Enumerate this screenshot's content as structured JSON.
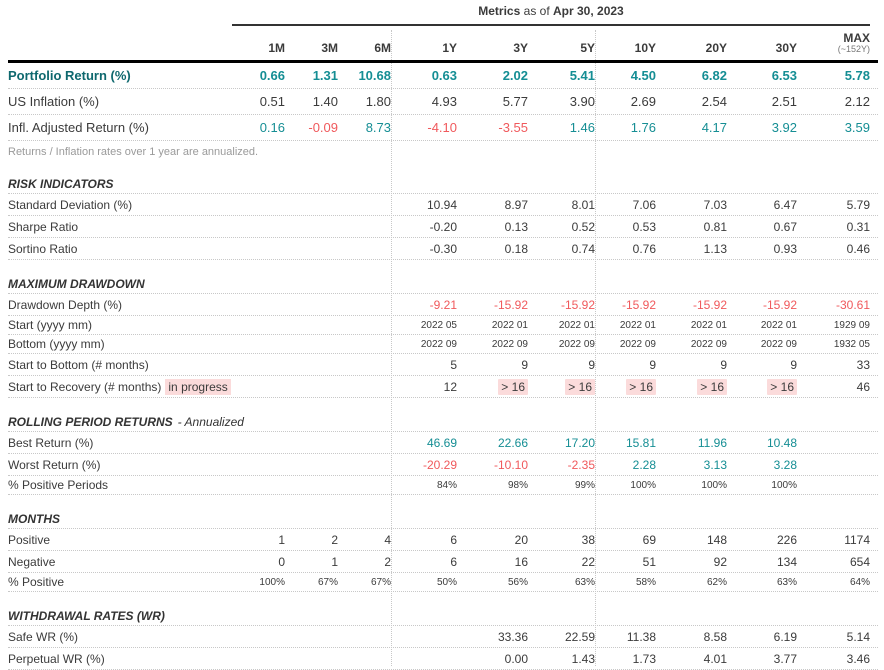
{
  "title": {
    "prefix": "Metrics",
    "middle": "as of",
    "date": "Apr 30, 2023"
  },
  "columns": [
    "1M",
    "3M",
    "6M",
    "1Y",
    "3Y",
    "5Y",
    "10Y",
    "20Y",
    "30Y",
    "MAX"
  ],
  "max_subnote": "(~152Y)",
  "note": "Returns / Inflation rates over 1 year are annualized.",
  "colors": {
    "teal": "#158e94",
    "red": "#f0595c",
    "dark": "#3b3b3b",
    "highlight_bg": "#fbdbdb"
  },
  "chart_data": {
    "type": "table",
    "title": "Metrics as of Apr 30, 2023",
    "categories": [
      "1M",
      "3M",
      "6M",
      "1Y",
      "3Y",
      "5Y",
      "10Y",
      "20Y",
      "30Y",
      "MAX (~152Y)"
    ]
  },
  "sections": [
    {
      "title": "",
      "rows": [
        {
          "label": "Portfolio Return (%)",
          "label_style": "primary",
          "size": "lg",
          "values": [
            "0.66",
            "1.31",
            "10.68",
            "0.63",
            "2.02",
            "5.41",
            "4.50",
            "6.82",
            "6.53",
            "5.78"
          ],
          "colors": [
            "t",
            "t",
            "t",
            "t",
            "t",
            "t",
            "t",
            "t",
            "t",
            "t"
          ]
        },
        {
          "label": "US Inflation (%)",
          "size": "lg",
          "plain": true,
          "values": [
            "0.51",
            "1.40",
            "1.80",
            "4.93",
            "5.77",
            "3.90",
            "2.69",
            "2.54",
            "2.51",
            "2.12"
          ],
          "colors": [
            "",
            "",
            "",
            "",
            "",
            "",
            "",
            "",
            "",
            ""
          ]
        },
        {
          "label": "Infl. Adjusted Return (%)",
          "size": "lg",
          "plain": true,
          "values": [
            "0.16",
            "-0.09",
            "8.73",
            "-4.10",
            "-3.55",
            "1.46",
            "1.76",
            "4.17",
            "3.92",
            "3.59"
          ],
          "colors": [
            "t",
            "r",
            "t",
            "r",
            "r",
            "t",
            "t",
            "t",
            "t",
            "t"
          ]
        }
      ]
    },
    {
      "title": "RISK INDICATORS",
      "rows": [
        {
          "label": "Standard Deviation (%)",
          "values": [
            "",
            "",
            "",
            "10.94",
            "8.97",
            "8.01",
            "7.06",
            "7.03",
            "6.47",
            "5.79"
          ]
        },
        {
          "label": "Sharpe Ratio",
          "values": [
            "",
            "",
            "",
            "-0.20",
            "0.13",
            "0.52",
            "0.53",
            "0.81",
            "0.67",
            "0.31"
          ]
        },
        {
          "label": "Sortino Ratio",
          "values": [
            "",
            "",
            "",
            "-0.30",
            "0.18",
            "0.74",
            "0.76",
            "1.13",
            "0.93",
            "0.46"
          ]
        }
      ]
    },
    {
      "title": "MAXIMUM DRAWDOWN",
      "rows": [
        {
          "label": "Drawdown Depth (%)",
          "values": [
            "",
            "",
            "",
            "-9.21",
            "-15.92",
            "-15.92",
            "-15.92",
            "-15.92",
            "-15.92",
            "-30.61"
          ],
          "colors": [
            "",
            "",
            "",
            "r",
            "r",
            "r",
            "r",
            "r",
            "r",
            "r"
          ]
        },
        {
          "label": "Start (yyyy mm)",
          "small": true,
          "values": [
            "",
            "",
            "",
            "2022 05",
            "2022 01",
            "2022 01",
            "2022 01",
            "2022 01",
            "2022 01",
            "1929 09"
          ]
        },
        {
          "label": "Bottom (yyyy mm)",
          "small": true,
          "values": [
            "",
            "",
            "",
            "2022 09",
            "2022 09",
            "2022 09",
            "2022 09",
            "2022 09",
            "2022 09",
            "1932 05"
          ]
        },
        {
          "label": "Start to Bottom (# months)",
          "values": [
            "",
            "",
            "",
            "5",
            "9",
            "9",
            "9",
            "9",
            "9",
            "33"
          ]
        },
        {
          "label": "Start to Recovery (# months)",
          "label_suffix": "in progress",
          "values": [
            "",
            "",
            "",
            "12",
            "> 16",
            "> 16",
            "> 16",
            "> 16",
            "> 16",
            "46"
          ],
          "highlights": [
            0,
            0,
            0,
            0,
            1,
            1,
            1,
            1,
            1,
            0
          ]
        }
      ]
    },
    {
      "title": "ROLLING PERIOD RETURNS",
      "title_suffix": "- Annualized",
      "rows": [
        {
          "label": "Best Return (%)",
          "values": [
            "",
            "",
            "",
            "46.69",
            "22.66",
            "17.20",
            "15.81",
            "11.96",
            "10.48",
            ""
          ],
          "colors": [
            "",
            "",
            "",
            "t",
            "t",
            "t",
            "t",
            "t",
            "t",
            ""
          ]
        },
        {
          "label": "Worst Return (%)",
          "values": [
            "",
            "",
            "",
            "-20.29",
            "-10.10",
            "-2.35",
            "2.28",
            "3.13",
            "3.28",
            ""
          ],
          "colors": [
            "",
            "",
            "",
            "r",
            "r",
            "r",
            "t",
            "t",
            "t",
            ""
          ]
        },
        {
          "label": "% Positive Periods",
          "small": true,
          "values": [
            "",
            "",
            "",
            "84%",
            "98%",
            "99%",
            "100%",
            "100%",
            "100%",
            ""
          ]
        }
      ]
    },
    {
      "title": "MONTHS",
      "rows": [
        {
          "label": "Positive",
          "values": [
            "1",
            "2",
            "4",
            "6",
            "20",
            "38",
            "69",
            "148",
            "226",
            "1174"
          ]
        },
        {
          "label": "Negative",
          "values": [
            "0",
            "1",
            "2",
            "6",
            "16",
            "22",
            "51",
            "92",
            "134",
            "654"
          ]
        },
        {
          "label": "% Positive",
          "small": true,
          "values": [
            "100%",
            "67%",
            "67%",
            "50%",
            "56%",
            "63%",
            "58%",
            "62%",
            "63%",
            "64%"
          ]
        }
      ]
    },
    {
      "title": "WITHDRAWAL RATES (WR)",
      "rows": [
        {
          "label": "Safe WR (%)",
          "values": [
            "",
            "",
            "",
            "",
            "33.36",
            "22.59",
            "11.38",
            "8.58",
            "6.19",
            "5.14"
          ]
        },
        {
          "label": "Perpetual WR (%)",
          "values": [
            "",
            "",
            "",
            "",
            "0.00",
            "1.43",
            "1.73",
            "4.01",
            "3.77",
            "3.46"
          ]
        }
      ]
    }
  ]
}
